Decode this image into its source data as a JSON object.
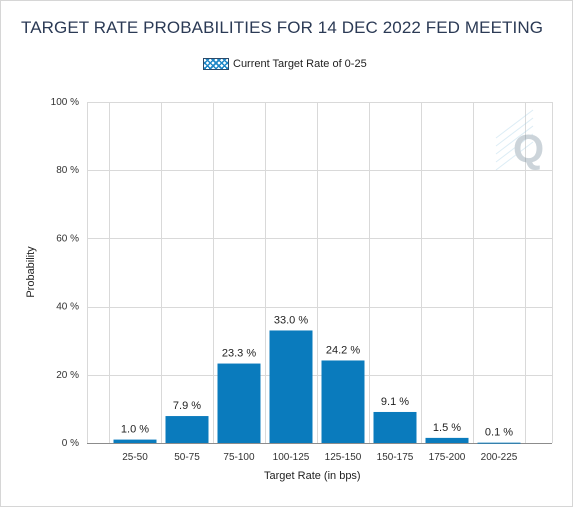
{
  "chart_data": {
    "type": "bar",
    "title": "TARGET RATE PROBABILITIES FOR 14 DEC 2022 FED MEETING",
    "xlabel": "Target Rate (in bps)",
    "ylabel": "Probability",
    "categories": [
      "25-50",
      "50-75",
      "75-100",
      "100-125",
      "125-150",
      "150-175",
      "175-200",
      "200-225"
    ],
    "series": [
      {
        "name": "Current Target Rate of 0-25",
        "values": [
          1.0,
          7.9,
          23.3,
          33.0,
          24.2,
          9.1,
          1.5,
          0.1
        ]
      }
    ],
    "data_labels": [
      "1.0 %",
      "7.9 %",
      "23.3 %",
      "33.0 %",
      "24.2 %",
      "9.1 %",
      "1.5 %",
      "0.1 %"
    ],
    "y_ticks": [
      0,
      20,
      40,
      60,
      80,
      100
    ],
    "y_tick_labels": [
      "0 %",
      "20 %",
      "40 %",
      "60 %",
      "80 %",
      "100 %"
    ],
    "ylim": [
      0,
      100
    ],
    "grid": true,
    "legend_position": "top-center",
    "bar_color": "#0a7bbd",
    "grid_color": "#d9d9d9"
  },
  "watermark_logo": {
    "icon": "q-logo-icon",
    "text": "Q"
  }
}
